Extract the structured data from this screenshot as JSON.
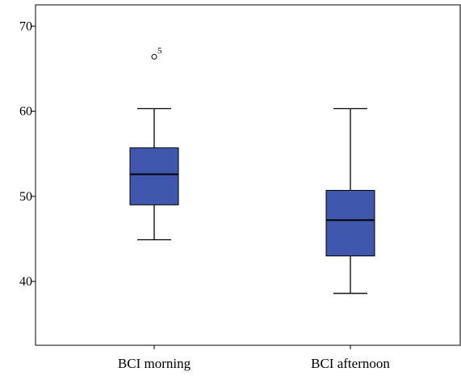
{
  "chart_data": {
    "type": "boxplot",
    "title": "",
    "xlabel": "",
    "ylabel": "",
    "ylim": [
      32.5,
      72.5
    ],
    "yticks": [
      40,
      50,
      60,
      70
    ],
    "grid": false,
    "colors": {
      "box_fill": "#3f57ac",
      "box_stroke": "#000000",
      "axis": "#000000",
      "background": "#ffffff"
    },
    "categories": [
      "BCI morning",
      "BCI afternoon"
    ],
    "boxes": [
      {
        "category": "BCI morning",
        "min": 44.9,
        "q1": 49.0,
        "median": 52.6,
        "q3": 55.7,
        "max": 60.3,
        "outliers": [
          {
            "value": 66.4,
            "label": "5"
          }
        ]
      },
      {
        "category": "BCI afternoon",
        "min": 38.6,
        "q1": 43.0,
        "median": 47.2,
        "q3": 50.7,
        "max": 60.3,
        "outliers": []
      }
    ]
  }
}
